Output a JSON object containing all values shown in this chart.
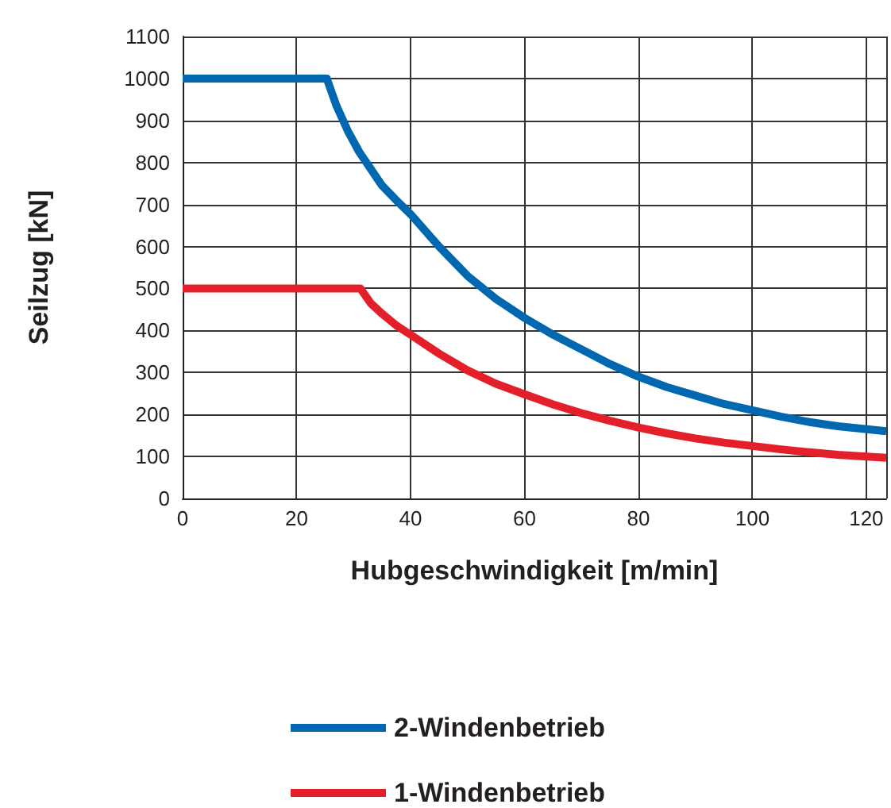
{
  "chart_data": {
    "type": "line",
    "xlabel": "Hubgeschwindigkeit [m/min]",
    "ylabel": "Seilzug [kN]",
    "xlim": [
      0,
      123.5
    ],
    "xticks": [
      0,
      20,
      40,
      60,
      80,
      100,
      120
    ],
    "ylim": [
      0,
      1100
    ],
    "yticks": [
      0,
      100,
      200,
      300,
      400,
      500,
      600,
      700,
      800,
      900,
      1000,
      1100
    ],
    "grid": true,
    "legend": "bottom",
    "marker": "none",
    "line_style": "solid",
    "series": [
      {
        "name": "2-Windenbetrieb",
        "color": "#0068b0",
        "x": [
          0,
          25.3,
          27,
          29,
          31,
          33,
          35,
          37.5,
          40,
          45,
          50,
          55,
          60,
          65,
          70,
          75,
          80,
          85,
          90,
          95,
          100,
          105,
          110,
          115,
          123.5
        ],
        "values": [
          1000,
          1000,
          935,
          875,
          825,
          785,
          745,
          710,
          677,
          600,
          530,
          475,
          430,
          390,
          355,
          320,
          290,
          265,
          245,
          225,
          210,
          195,
          182,
          172,
          160
        ]
      },
      {
        "name": "1-Windenbetrieb",
        "color": "#e3202a",
        "x": [
          0,
          31.2,
          33,
          35,
          37.5,
          40,
          45,
          50,
          55,
          60,
          65,
          70,
          75,
          80,
          85,
          90,
          95,
          100,
          105,
          110,
          115,
          123.5
        ],
        "values": [
          500,
          500,
          465,
          440,
          412,
          390,
          345,
          305,
          273,
          248,
          224,
          203,
          185,
          169,
          155,
          143,
          133,
          125,
          117,
          110,
          104,
          97
        ]
      }
    ]
  }
}
